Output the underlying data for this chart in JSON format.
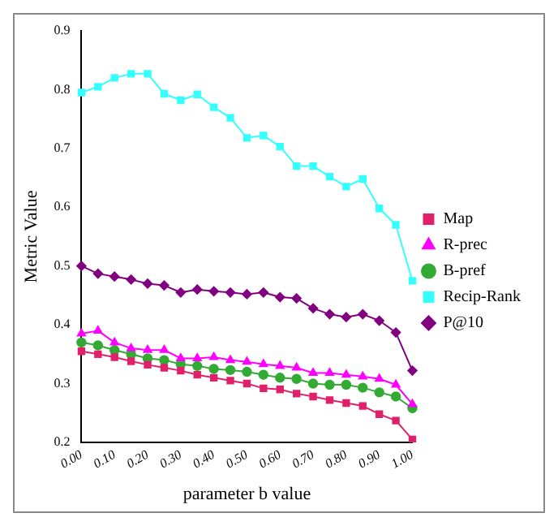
{
  "chart_data": {
    "type": "line",
    "xlabel": "parameter b value",
    "ylabel": "Metric Value",
    "categories": [
      "0.00",
      null,
      "0.10",
      null,
      "0.20",
      null,
      "0.30",
      null,
      "0.40",
      null,
      "0.50",
      null,
      "0.60",
      null,
      "0.70",
      null,
      "0.80",
      null,
      "0.90",
      null,
      "1.00"
    ],
    "ylim": [
      0.2,
      0.9
    ],
    "yticks": [
      0.2,
      0.3,
      0.4,
      0.5,
      0.6,
      0.7,
      0.8,
      0.9
    ],
    "grid": false,
    "legend": "right",
    "series": [
      {
        "name": "Map",
        "color": "#e0206a",
        "marker": "square",
        "values": [
          0.355,
          0.35,
          0.345,
          0.338,
          0.332,
          0.327,
          0.322,
          0.315,
          0.31,
          0.305,
          0.3,
          0.292,
          0.29,
          0.283,
          0.278,
          0.272,
          0.267,
          0.262,
          0.248,
          0.237,
          0.205
        ]
      },
      {
        "name": "R-prec",
        "color": "#ff00ff",
        "marker": "triangle",
        "values": [
          0.385,
          0.39,
          0.37,
          0.36,
          0.357,
          0.357,
          0.343,
          0.343,
          0.345,
          0.34,
          0.337,
          0.333,
          0.33,
          0.327,
          0.318,
          0.318,
          0.315,
          0.312,
          0.308,
          0.298,
          0.265
        ]
      },
      {
        "name": "B-pref",
        "color": "#33aa33",
        "marker": "circle",
        "values": [
          0.37,
          0.365,
          0.357,
          0.35,
          0.343,
          0.34,
          0.333,
          0.33,
          0.325,
          0.323,
          0.32,
          0.315,
          0.31,
          0.308,
          0.3,
          0.298,
          0.298,
          0.293,
          0.285,
          0.278,
          0.258
        ]
      },
      {
        "name": "Recip-Rank",
        "color": "#33ffff",
        "marker": "square",
        "values": [
          0.795,
          0.805,
          0.82,
          0.827,
          0.827,
          0.793,
          0.782,
          0.792,
          0.77,
          0.752,
          0.718,
          0.722,
          0.703,
          0.67,
          0.67,
          0.652,
          0.635,
          0.648,
          0.598,
          0.57,
          0.475
        ]
      },
      {
        "name": "P@10",
        "color": "#800080",
        "marker": "diamond",
        "values": [
          0.5,
          0.487,
          0.482,
          0.477,
          0.47,
          0.467,
          0.455,
          0.46,
          0.457,
          0.455,
          0.452,
          0.455,
          0.447,
          0.445,
          0.428,
          0.418,
          0.413,
          0.418,
          0.407,
          0.387,
          0.322
        ]
      }
    ]
  }
}
